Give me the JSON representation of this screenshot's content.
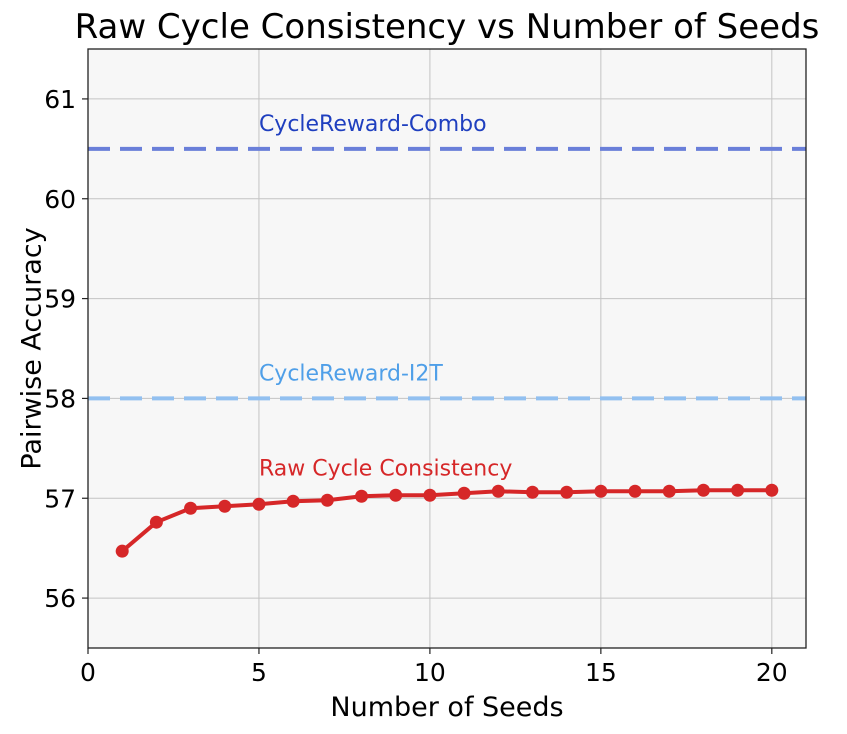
{
  "chart_data": {
    "type": "line",
    "title": "Raw Cycle Consistency vs Number of Seeds",
    "xlabel": "Number of Seeds",
    "ylabel": "Pairwise Accuracy",
    "xlim": [
      0,
      21
    ],
    "ylim": [
      55.5,
      61.5
    ],
    "xticks": [
      0,
      5,
      10,
      15,
      20
    ],
    "yticks": [
      56,
      57,
      58,
      59,
      60,
      61
    ],
    "grid": true,
    "series": [
      {
        "name": "Raw Cycle Consistency",
        "color": "#d62728",
        "x": [
          1,
          2,
          3,
          4,
          5,
          6,
          7,
          8,
          9,
          10,
          11,
          12,
          13,
          14,
          15,
          16,
          17,
          18,
          19,
          20
        ],
        "values": [
          56.47,
          56.76,
          56.9,
          56.92,
          56.94,
          56.97,
          56.98,
          57.02,
          57.03,
          57.03,
          57.05,
          57.07,
          57.06,
          57.06,
          57.07,
          57.07,
          57.07,
          57.08,
          57.08,
          57.08
        ]
      }
    ],
    "reference_lines": [
      {
        "name": "CycleReward-Combo",
        "value": 60.5,
        "line_color": "#6a7fd9",
        "text_color": "#1f3fbf"
      },
      {
        "name": "CycleReward-I2T",
        "value": 58.0,
        "line_color": "#92c0f0",
        "text_color": "#4f9fe8"
      }
    ],
    "annotations": [
      {
        "text": "CycleReward-Combo",
        "x": 5,
        "y": 60.68
      },
      {
        "text": "CycleReward-I2T",
        "x": 5,
        "y": 58.18
      },
      {
        "text": "Raw Cycle Consistency",
        "x": 5,
        "y": 57.23
      }
    ]
  }
}
